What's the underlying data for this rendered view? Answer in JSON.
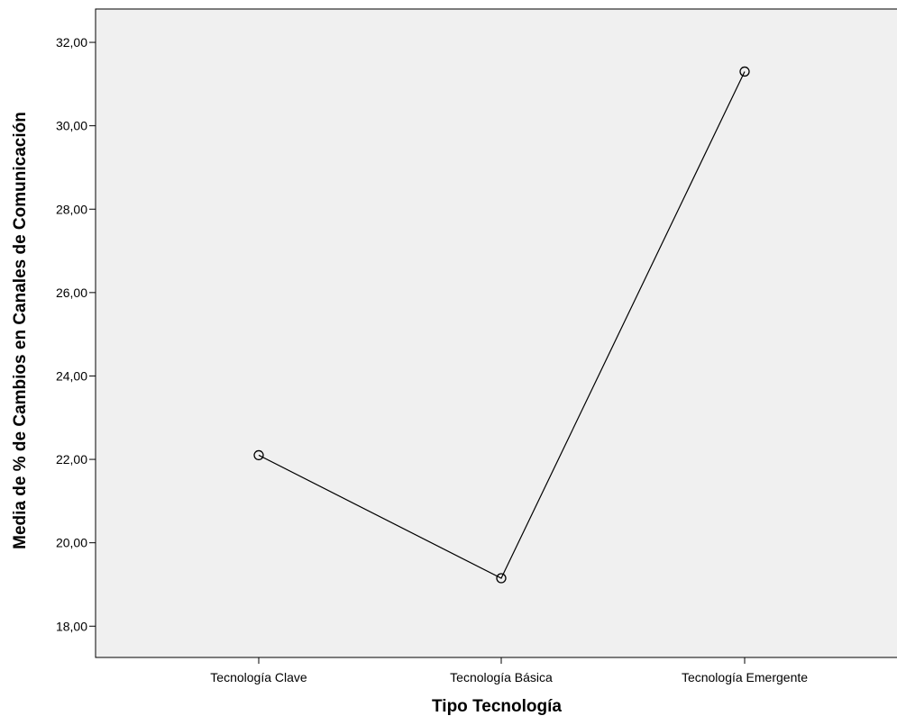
{
  "chart_data": {
    "type": "line",
    "title": "",
    "xlabel": "Tipo Tecnología",
    "ylabel": "Media de % de Cambios en Canales de Comunicación",
    "categories": [
      "Tecnología Clave",
      "Tecnología Básica",
      "Tecnología Emergente"
    ],
    "series": [
      {
        "values": [
          22.1,
          19.15,
          31.3
        ]
      }
    ],
    "ylim": [
      17.25,
      32.8
    ],
    "yticks": [
      18,
      20,
      22,
      24,
      26,
      28,
      30,
      32
    ],
    "ytick_labels": [
      "18,00",
      "20,00",
      "22,00",
      "24,00",
      "26,00",
      "28,00",
      "30,00",
      "32,00"
    ],
    "grid": false,
    "legend": "none",
    "marker": "open-circle",
    "colors": {
      "plot_background": "#f0f0f0",
      "line": "#000000"
    }
  }
}
